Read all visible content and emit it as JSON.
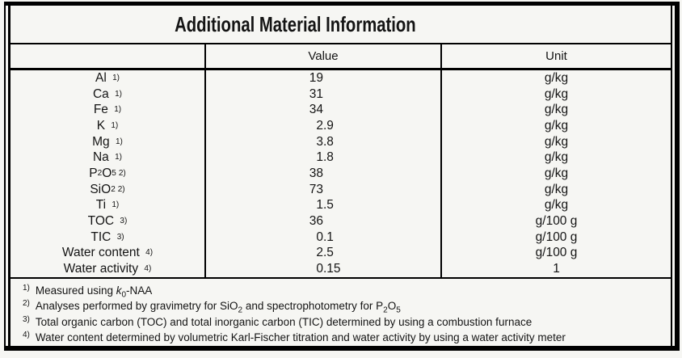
{
  "title": "Additional Material Information",
  "table": {
    "columns": {
      "material": "",
      "value": "Value",
      "unit": "Unit"
    },
    "rows": [
      {
        "name": "Al",
        "sup": "1)",
        "value": "19",
        "unit": "g/kg"
      },
      {
        "name": "Ca",
        "sup": "1)",
        "value": "31",
        "unit": "g/kg"
      },
      {
        "name": "Fe",
        "sup": "1)",
        "value": "34",
        "unit": "g/kg"
      },
      {
        "name": "K",
        "sup": "1)",
        "value": "2.9",
        "unit": "g/kg"
      },
      {
        "name": "Mg",
        "sup": "1)",
        "value": "3.8",
        "unit": "g/kg"
      },
      {
        "name": "Na",
        "sup": "1)",
        "value": "1.8",
        "unit": "g/kg"
      },
      {
        "name": "P~2~O~5~",
        "sup": "2)",
        "value": "38",
        "unit": "g/kg"
      },
      {
        "name": "SiO~2~",
        "sup": "2)",
        "value": "73",
        "unit": "g/kg"
      },
      {
        "name": "Ti",
        "sup": "1)",
        "value": "1.5",
        "unit": "g/kg"
      },
      {
        "name": "TOC",
        "sup": "3)",
        "value": "36",
        "unit": "g/100 g"
      },
      {
        "name": "TIC",
        "sup": "3)",
        "value": "0.1",
        "unit": "g/100 g"
      },
      {
        "name": "Water content",
        "sup": "4)",
        "value": "2.5",
        "unit": "g/100 g"
      },
      {
        "name": "Water activity",
        "sup": "4)",
        "value": "0.15",
        "unit": "1"
      }
    ]
  },
  "footnotes": [
    {
      "marker": "1)",
      "text": "Measured using *k*~0~-NAA"
    },
    {
      "marker": "2)",
      "text": "Analyses performed by gravimetry for SiO~2~ and spectrophotometry for P~2~O~5~"
    },
    {
      "marker": "3)",
      "text": "Total organic carbon (TOC) and total inorganic carbon (TIC) determined by using a combustion furnace"
    },
    {
      "marker": "4)",
      "text": "Water content determined by volumetric Karl-Fischer titration and water activity by using a water activity meter"
    }
  ],
  "colors": {
    "paper": "#f6f6f3",
    "ink": "#141414",
    "border": "#000000"
  }
}
